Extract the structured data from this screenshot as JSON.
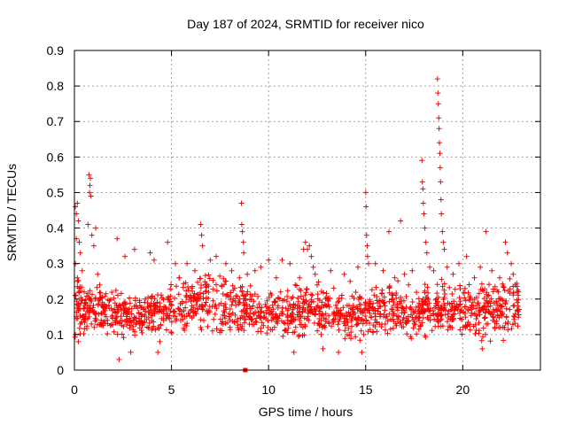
{
  "chart_data": {
    "type": "scatter",
    "title": "Day 187 of 2024, SRMTID for receiver nico",
    "xlabel": "GPS time / hours",
    "ylabel": "SRMTID / TECUs",
    "xlim": [
      0,
      24
    ],
    "ylim": [
      0,
      0.9
    ],
    "x_ticks": [
      0,
      5,
      10,
      15,
      20
    ],
    "x_tick_labels": [
      "0",
      "5",
      "10",
      "15",
      "20"
    ],
    "y_ticks": [
      0,
      0.1,
      0.2,
      0.3,
      0.4,
      0.5,
      0.6,
      0.7,
      0.8,
      0.9
    ],
    "y_tick_labels": [
      "0",
      "0.1",
      "0.2",
      "0.3",
      "0.4",
      "0.5",
      "0.6",
      "0.7",
      "0.8",
      "0.9"
    ],
    "grid": true,
    "marker": "+",
    "color": "#ff0000",
    "series": [
      {
        "name": "SRMTID",
        "points": [
          [
            0.05,
            0.46
          ],
          [
            0.1,
            0.44
          ],
          [
            0.15,
            0.47
          ],
          [
            0.2,
            0.42
          ],
          [
            0.1,
            0.37
          ],
          [
            0.25,
            0.36
          ],
          [
            0.3,
            0.33
          ],
          [
            0.05,
            0.3
          ],
          [
            0.4,
            0.28
          ],
          [
            0.15,
            0.25
          ],
          [
            0.05,
            0.21
          ],
          [
            0.2,
            0.18
          ],
          [
            0.1,
            0.15
          ],
          [
            0.3,
            0.13
          ],
          [
            0.05,
            0.1
          ],
          [
            0.2,
            0.08
          ],
          [
            0.5,
            0.22
          ],
          [
            0.6,
            0.19
          ],
          [
            0.7,
            0.41
          ],
          [
            0.75,
            0.55
          ],
          [
            0.8,
            0.52
          ],
          [
            0.78,
            0.5
          ],
          [
            0.85,
            0.49
          ],
          [
            0.82,
            0.54
          ],
          [
            0.9,
            0.38
          ],
          [
            1.0,
            0.35
          ],
          [
            1.1,
            0.4
          ],
          [
            1.2,
            0.27
          ],
          [
            1.3,
            0.24
          ],
          [
            1.4,
            0.16
          ],
          [
            2.2,
            0.37
          ],
          [
            2.3,
            0.03
          ],
          [
            2.6,
            0.32
          ],
          [
            2.9,
            0.05
          ],
          [
            3.1,
            0.34
          ],
          [
            3.9,
            0.33
          ],
          [
            4.1,
            0.31
          ],
          [
            4.3,
            0.05
          ],
          [
            4.4,
            0.08
          ],
          [
            4.8,
            0.36
          ],
          [
            5.2,
            0.3
          ],
          [
            5.4,
            0.26
          ],
          [
            5.8,
            0.3
          ],
          [
            6.2,
            0.28
          ],
          [
            6.5,
            0.41
          ],
          [
            6.55,
            0.38
          ],
          [
            6.6,
            0.35
          ],
          [
            7.0,
            0.31
          ],
          [
            7.3,
            0.32
          ],
          [
            7.8,
            0.3
          ],
          [
            8.1,
            0.28
          ],
          [
            8.5,
            0.26
          ],
          [
            8.6,
            0.47
          ],
          [
            8.62,
            0.41
          ],
          [
            8.65,
            0.39
          ],
          [
            8.7,
            0.36
          ],
          [
            8.72,
            0.33
          ],
          [
            8.9,
            0.27
          ],
          [
            9.3,
            0.28
          ],
          [
            9.6,
            0.29
          ],
          [
            10.0,
            0.31
          ],
          [
            10.4,
            0.26
          ],
          [
            10.7,
            0.31
          ],
          [
            11.1,
            0.3
          ],
          [
            11.3,
            0.05
          ],
          [
            11.6,
            0.26
          ],
          [
            11.8,
            0.34
          ],
          [
            11.9,
            0.36
          ],
          [
            12.0,
            0.34
          ],
          [
            12.1,
            0.35
          ],
          [
            12.2,
            0.32
          ],
          [
            12.3,
            0.29
          ],
          [
            12.4,
            0.27
          ],
          [
            12.5,
            0.24
          ],
          [
            12.8,
            0.06
          ],
          [
            13.2,
            0.28
          ],
          [
            13.6,
            0.05
          ],
          [
            13.9,
            0.27
          ],
          [
            14.2,
            0.25
          ],
          [
            14.6,
            0.29
          ],
          [
            14.8,
            0.05
          ],
          [
            15.0,
            0.5
          ],
          [
            15.02,
            0.46
          ],
          [
            15.05,
            0.38
          ],
          [
            15.08,
            0.35
          ],
          [
            15.1,
            0.32
          ],
          [
            15.15,
            0.3
          ],
          [
            15.5,
            0.3
          ],
          [
            15.9,
            0.28
          ],
          [
            16.2,
            0.39
          ],
          [
            16.5,
            0.26
          ],
          [
            16.8,
            0.42
          ],
          [
            17.0,
            0.27
          ],
          [
            17.4,
            0.28
          ],
          [
            17.9,
            0.59
          ],
          [
            17.92,
            0.53
          ],
          [
            17.95,
            0.51
          ],
          [
            17.97,
            0.47
          ],
          [
            18.0,
            0.44
          ],
          [
            18.05,
            0.4
          ],
          [
            18.1,
            0.36
          ],
          [
            18.15,
            0.33
          ],
          [
            18.3,
            0.29
          ],
          [
            18.5,
            0.28
          ],
          [
            18.7,
            0.82
          ],
          [
            18.72,
            0.78
          ],
          [
            18.74,
            0.75
          ],
          [
            18.76,
            0.71
          ],
          [
            18.78,
            0.68
          ],
          [
            18.8,
            0.64
          ],
          [
            18.82,
            0.61
          ],
          [
            18.84,
            0.57
          ],
          [
            18.86,
            0.53
          ],
          [
            18.88,
            0.48
          ],
          [
            18.9,
            0.44
          ],
          [
            18.95,
            0.39
          ],
          [
            19.0,
            0.36
          ],
          [
            19.05,
            0.34
          ],
          [
            19.2,
            0.29
          ],
          [
            19.5,
            0.27
          ],
          [
            19.8,
            0.3
          ],
          [
            20.2,
            0.32
          ],
          [
            20.6,
            0.26
          ],
          [
            20.9,
            0.29
          ],
          [
            21.0,
            0.06
          ],
          [
            21.2,
            0.39
          ],
          [
            21.5,
            0.28
          ],
          [
            21.9,
            0.26
          ],
          [
            22.2,
            0.36
          ],
          [
            22.3,
            0.33
          ],
          [
            22.5,
            0.3
          ],
          [
            22.6,
            0.27
          ],
          [
            22.7,
            0.24
          ],
          [
            22.8,
            0.22
          ],
          [
            22.85,
            0.18
          ]
        ],
        "band": {
          "x_range": [
            0,
            22.9
          ],
          "y_low": [
            0.09,
            0.1,
            0.08,
            0.09,
            0.1,
            0.1,
            0.11,
            0.09,
            0.08,
            0.1,
            0.09,
            0.08,
            0.1,
            0.09,
            0.08,
            0.09,
            0.1,
            0.08,
            0.1,
            0.09,
            0.08,
            0.09,
            0.08
          ],
          "y_high": [
            0.25,
            0.23,
            0.22,
            0.2,
            0.21,
            0.24,
            0.26,
            0.25,
            0.24,
            0.22,
            0.21,
            0.23,
            0.22,
            0.2,
            0.21,
            0.23,
            0.24,
            0.22,
            0.24,
            0.23,
            0.22,
            0.24,
            0.25
          ],
          "count": 1500
        }
      }
    ],
    "special_marker": {
      "x": 8.8,
      "y": 0.0
    }
  }
}
